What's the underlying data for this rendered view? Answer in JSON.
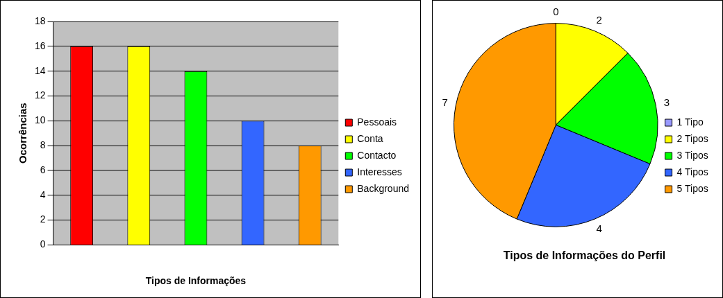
{
  "chart_data": [
    {
      "type": "bar",
      "xlabel": "Tipos de Informações",
      "ylabel": "Ocorrências",
      "categories": [
        null
      ],
      "series": [
        {
          "name": "Pessoais",
          "color": "#ff0000",
          "values": [
            16
          ]
        },
        {
          "name": "Conta",
          "color": "#ffff00",
          "values": [
            16
          ]
        },
        {
          "name": "Contacto",
          "color": "#00ff00",
          "values": [
            14
          ]
        },
        {
          "name": "Interesses",
          "color": "#3366ff",
          "values": [
            10
          ]
        },
        {
          "name": "Background",
          "color": "#ff9900",
          "values": [
            8
          ]
        }
      ],
      "ylim": [
        0,
        18
      ],
      "yticks": [
        0,
        2,
        4,
        6,
        8,
        10,
        12,
        14,
        16,
        18
      ],
      "grid": "y",
      "legend": "right"
    },
    {
      "type": "pie",
      "title": "Tipos de Informações do Perfil",
      "categories": [
        "1 Tipo",
        "2 Tipos",
        "3 Tipos",
        "4 Tipos",
        "5 Tipos"
      ],
      "values": [
        0,
        2,
        3,
        4,
        7
      ],
      "value_labels": [
        "0",
        "2",
        "3",
        "4",
        "7"
      ],
      "colors": [
        "#9999ff",
        "#ffff00",
        "#00ff00",
        "#3366ff",
        "#ff9900"
      ],
      "legend": "right"
    }
  ]
}
